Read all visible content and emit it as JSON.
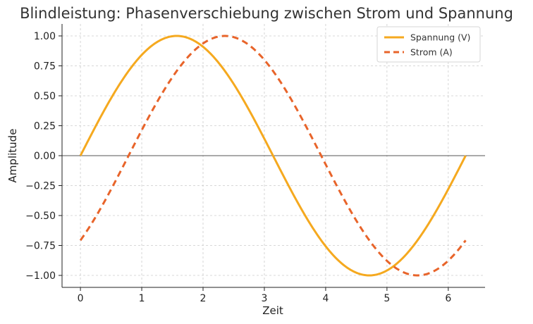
{
  "chart_data": {
    "type": "line",
    "title": "Blindleistung: Phasenverschiebung zwischen Strom und Spannung",
    "xlabel": "Zeit",
    "ylabel": "Amplitude",
    "xlim": [
      -0.3,
      6.6
    ],
    "ylim": [
      -1.1,
      1.1
    ],
    "xticks": [
      0,
      1,
      2,
      3,
      4,
      5,
      6
    ],
    "xtick_labels": [
      "0",
      "1",
      "2",
      "3",
      "4",
      "5",
      "6"
    ],
    "yticks": [
      1.0,
      0.75,
      0.5,
      0.25,
      0.0,
      -0.25,
      -0.5,
      -0.75,
      -1.0
    ],
    "ytick_labels": [
      "1.00",
      "0.75",
      "0.50",
      "0.25",
      "0.00",
      "−0.25",
      "−0.50",
      "−0.75",
      "−1.00"
    ],
    "grid": true,
    "legend_position": "top-right",
    "x_range": [
      0,
      6.2832
    ],
    "series": [
      {
        "name": "Spannung (V)",
        "function": "sin(t)",
        "style": "solid",
        "color": "#f5a91f"
      },
      {
        "name": "Strom (A)",
        "function": "sin(t - pi/4)",
        "style": "dashed",
        "color": "#e8642a"
      }
    ],
    "zero_line_color": "#555555",
    "grid_color": "#cccccc"
  }
}
